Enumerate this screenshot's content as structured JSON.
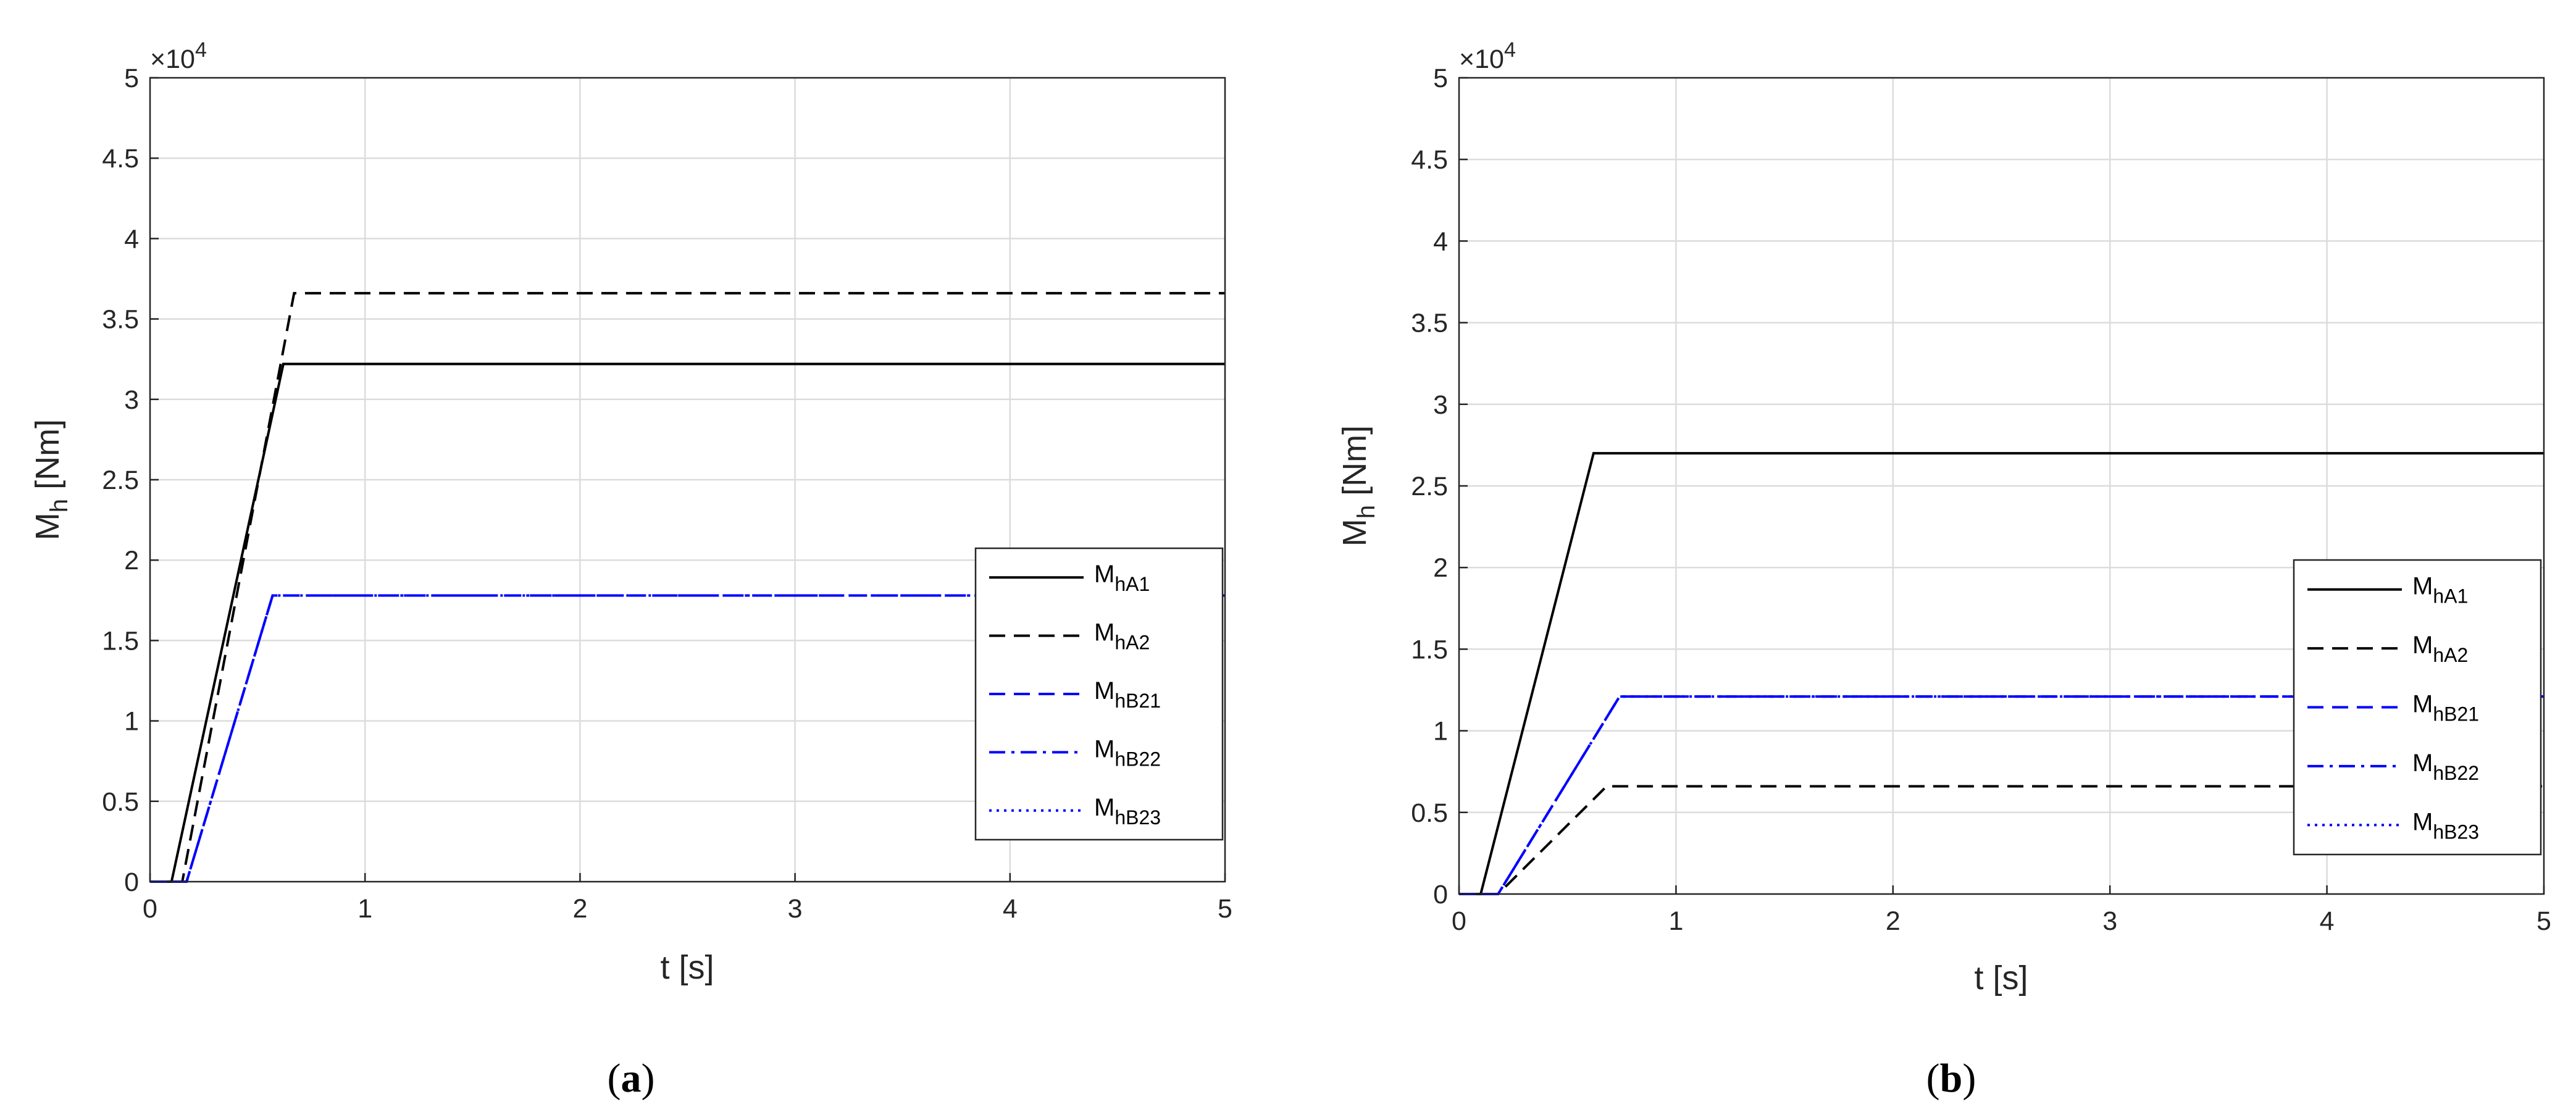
{
  "chart_data": [
    {
      "type": "line",
      "panel": "a",
      "xlabel": "t [s]",
      "ylabel_main": "M",
      "ylabel_sub": "h",
      "ylabel_unit": " [Nm]",
      "multiplier_base": "×10",
      "multiplier_exp": "4",
      "xlim": [
        0,
        5
      ],
      "ylim": [
        0,
        50000
      ],
      "xticks": [
        "0",
        "1",
        "2",
        "3",
        "4",
        "5"
      ],
      "yticks": [
        "0",
        "0.5",
        "1",
        "1.5",
        "2",
        "2.5",
        "3",
        "3.5",
        "4",
        "4.5",
        "5"
      ],
      "grid": true,
      "legend_position": "right",
      "series": [
        {
          "name": "M",
          "sub": "hA1",
          "color": "#000000",
          "style": "solid",
          "x": [
            0,
            0.1,
            0.62,
            5
          ],
          "y": [
            0,
            0,
            32200,
            32200
          ]
        },
        {
          "name": "M",
          "sub": "hA2",
          "color": "#000000",
          "style": "dashed",
          "x": [
            0,
            0.15,
            0.67,
            5
          ],
          "y": [
            0,
            0,
            36600,
            36600
          ]
        },
        {
          "name": "M",
          "sub": "hB21",
          "color": "#0000ff",
          "style": "dashed",
          "x": [
            0,
            0.17,
            0.57,
            5
          ],
          "y": [
            0,
            0,
            17800,
            17800
          ]
        },
        {
          "name": "M",
          "sub": "hB22",
          "color": "#0000ff",
          "style": "dashdot",
          "x": [
            0,
            0.17,
            0.57,
            5
          ],
          "y": [
            0,
            0,
            17800,
            17800
          ]
        },
        {
          "name": "M",
          "sub": "hB23",
          "color": "#0000ff",
          "style": "dotted",
          "x": [
            0,
            0.17,
            0.57,
            5
          ],
          "y": [
            0,
            0,
            17800,
            17800
          ]
        }
      ]
    },
    {
      "type": "line",
      "panel": "b",
      "xlabel": "t [s]",
      "ylabel_main": "M",
      "ylabel_sub": "h",
      "ylabel_unit": " [Nm]",
      "multiplier_base": "×10",
      "multiplier_exp": "4",
      "xlim": [
        0,
        5
      ],
      "ylim": [
        0,
        50000
      ],
      "xticks": [
        "0",
        "1",
        "2",
        "3",
        "4",
        "5"
      ],
      "yticks": [
        "0",
        "0.5",
        "1",
        "1.5",
        "2",
        "2.5",
        "3",
        "3.5",
        "4",
        "4.5",
        "5"
      ],
      "grid": true,
      "legend_position": "right",
      "series": [
        {
          "name": "M",
          "sub": "hA1",
          "color": "#000000",
          "style": "solid",
          "x": [
            0,
            0.1,
            0.62,
            5
          ],
          "y": [
            0,
            0,
            27000,
            27000
          ]
        },
        {
          "name": "M",
          "sub": "hA2",
          "color": "#000000",
          "style": "dashed",
          "x": [
            0,
            0.18,
            0.68,
            5
          ],
          "y": [
            0,
            0,
            6600,
            6600
          ]
        },
        {
          "name": "M",
          "sub": "hB21",
          "color": "#0000ff",
          "style": "dashed",
          "x": [
            0,
            0.18,
            0.74,
            5
          ],
          "y": [
            0,
            0,
            12100,
            12100
          ]
        },
        {
          "name": "M",
          "sub": "hB22",
          "color": "#0000ff",
          "style": "dashdot",
          "x": [
            0,
            0.18,
            0.74,
            5
          ],
          "y": [
            0,
            0,
            12100,
            12100
          ]
        },
        {
          "name": "M",
          "sub": "hB23",
          "color": "#0000ff",
          "style": "dotted",
          "x": [
            0,
            0.18,
            0.74,
            5
          ],
          "y": [
            0,
            0,
            12100,
            12100
          ]
        }
      ]
    }
  ],
  "captions": [
    "a",
    "b"
  ]
}
